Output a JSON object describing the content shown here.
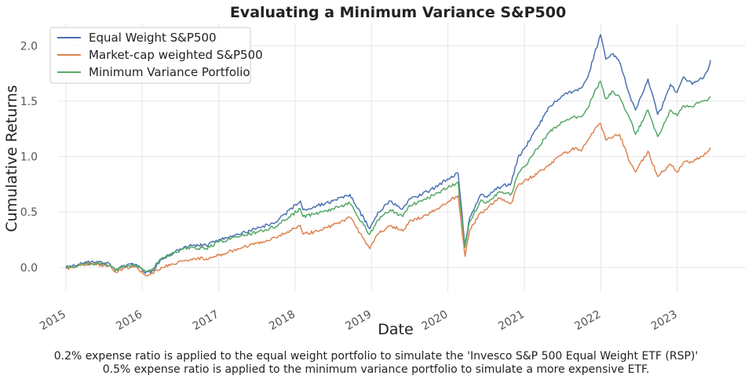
{
  "chart_data": {
    "type": "line",
    "title": "Evaluating a Minimum Variance S&P500",
    "xlabel": "Date",
    "ylabel": "Cumulative Returns",
    "x_ticks": [
      "2015",
      "2016",
      "2017",
      "2018",
      "2019",
      "2020",
      "2021",
      "2022",
      "2023"
    ],
    "y_ticks": [
      "0.0",
      "0.5",
      "1.0",
      "1.5",
      "2.0"
    ],
    "xlim": [
      "2014-11-25",
      "2023-11-25"
    ],
    "ylim": [
      -0.22,
      2.2
    ],
    "grid": true,
    "legend_position": "top-left",
    "x": [
      "2015-01-02",
      "2015-03-01",
      "2015-05-01",
      "2015-07-01",
      "2015-08-01",
      "2015-08-25",
      "2015-10-01",
      "2015-12-01",
      "2016-01-10",
      "2016-02-11",
      "2016-04-01",
      "2016-06-01",
      "2016-07-01",
      "2016-09-01",
      "2016-11-01",
      "2017-01-01",
      "2017-04-01",
      "2017-07-01",
      "2017-10-01",
      "2018-01-26",
      "2018-02-08",
      "2018-04-01",
      "2018-07-01",
      "2018-09-20",
      "2018-10-15",
      "2018-12-24",
      "2019-02-01",
      "2019-04-01",
      "2019-05-31",
      "2019-07-01",
      "2019-09-01",
      "2019-11-01",
      "2020-01-01",
      "2020-02-19",
      "2020-03-23",
      "2020-04-15",
      "2020-06-08",
      "2020-07-01",
      "2020-09-01",
      "2020-10-30",
      "2020-12-01",
      "2021-01-01",
      "2021-03-01",
      "2021-05-01",
      "2021-07-01",
      "2021-09-01",
      "2021-10-01",
      "2021-11-01",
      "2021-12-01",
      "2021-12-31",
      "2022-01-25",
      "2022-03-01",
      "2022-04-01",
      "2022-05-20",
      "2022-06-16",
      "2022-08-15",
      "2022-09-30",
      "2022-10-15",
      "2022-11-30",
      "2023-01-01",
      "2023-02-01",
      "2023-03-15",
      "2023-04-01",
      "2023-05-01",
      "2023-06-01",
      "2023-06-10"
    ],
    "series": [
      {
        "name": "Equal Weight S&P500",
        "color": "#4c72b0",
        "values": [
          0.0,
          0.03,
          0.05,
          0.04,
          0.03,
          -0.02,
          0.01,
          0.03,
          -0.04,
          -0.05,
          0.08,
          0.13,
          0.17,
          0.2,
          0.2,
          0.25,
          0.3,
          0.35,
          0.41,
          0.6,
          0.52,
          0.55,
          0.6,
          0.66,
          0.57,
          0.35,
          0.5,
          0.6,
          0.53,
          0.62,
          0.66,
          0.72,
          0.8,
          0.85,
          0.2,
          0.45,
          0.66,
          0.64,
          0.72,
          0.76,
          0.99,
          1.07,
          1.25,
          1.45,
          1.55,
          1.6,
          1.62,
          1.72,
          1.92,
          2.1,
          1.88,
          1.93,
          1.85,
          1.55,
          1.42,
          1.7,
          1.38,
          1.42,
          1.65,
          1.58,
          1.72,
          1.65,
          1.68,
          1.7,
          1.8,
          1.87
        ]
      },
      {
        "name": "Market-cap weighted S&P500",
        "color": "#dd8452",
        "values": [
          -0.01,
          0.02,
          0.03,
          0.02,
          0.02,
          -0.04,
          -0.01,
          0.01,
          -0.06,
          -0.06,
          0.0,
          0.03,
          0.06,
          0.08,
          0.08,
          0.11,
          0.17,
          0.22,
          0.27,
          0.38,
          0.3,
          0.32,
          0.38,
          0.45,
          0.38,
          0.17,
          0.3,
          0.38,
          0.33,
          0.42,
          0.45,
          0.52,
          0.59,
          0.65,
          0.1,
          0.34,
          0.5,
          0.52,
          0.63,
          0.58,
          0.74,
          0.78,
          0.84,
          0.93,
          1.02,
          1.08,
          1.05,
          1.15,
          1.24,
          1.3,
          1.15,
          1.18,
          1.2,
          0.95,
          0.86,
          1.05,
          0.82,
          0.85,
          0.93,
          0.86,
          0.95,
          0.95,
          0.97,
          1.0,
          1.05,
          1.08
        ]
      },
      {
        "name": "Minimum Variance Portfolio",
        "color": "#55a868",
        "values": [
          -0.01,
          0.02,
          0.04,
          0.03,
          0.02,
          -0.03,
          0.01,
          0.02,
          -0.02,
          -0.03,
          0.08,
          0.13,
          0.16,
          0.18,
          0.17,
          0.23,
          0.28,
          0.32,
          0.37,
          0.53,
          0.46,
          0.48,
          0.53,
          0.58,
          0.5,
          0.3,
          0.43,
          0.52,
          0.46,
          0.56,
          0.6,
          0.66,
          0.72,
          0.77,
          0.18,
          0.42,
          0.61,
          0.58,
          0.68,
          0.66,
          0.84,
          0.91,
          1.07,
          1.22,
          1.31,
          1.36,
          1.36,
          1.44,
          1.58,
          1.68,
          1.52,
          1.59,
          1.54,
          1.34,
          1.2,
          1.42,
          1.18,
          1.22,
          1.42,
          1.37,
          1.46,
          1.45,
          1.48,
          1.5,
          1.52,
          1.54
        ]
      }
    ]
  },
  "footnote": {
    "line1": "0.2% expense ratio is applied to the equal weight portfolio to simulate the 'Invesco S&P 500 Equal Weight ETF (RSP)'",
    "line2": "0.5% expense ratio is applied to the minimum variance portfolio to simulate a more expensive ETF."
  }
}
